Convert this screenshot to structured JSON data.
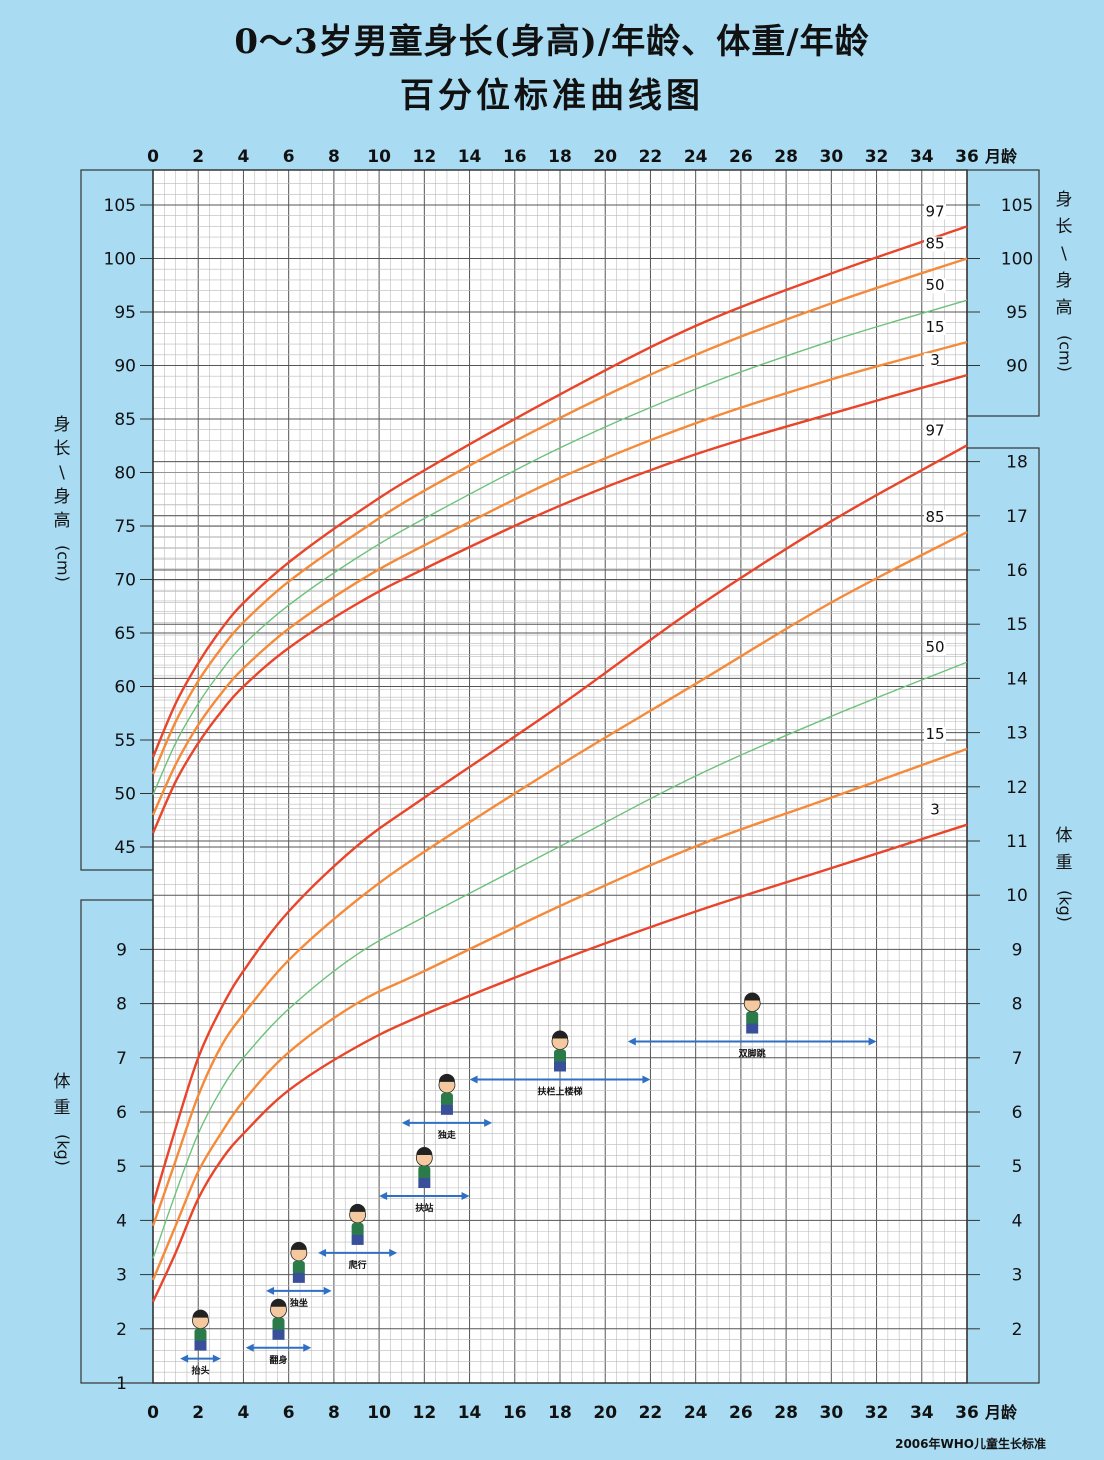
{
  "title_line1": "0～3岁男童身长(身高)/年龄、体重/年龄",
  "title_line2": "百分位标准曲线图",
  "source": "2006年WHO儿童生长标准",
  "chart_data": {
    "type": "line",
    "x_unit_label": "月龄",
    "xlim": [
      0,
      36
    ],
    "x_ticks": [
      0,
      2,
      4,
      6,
      8,
      10,
      12,
      14,
      16,
      18,
      20,
      22,
      24,
      26,
      28,
      30,
      32,
      34,
      36
    ],
    "length_axis": {
      "label_chars": [
        "身",
        "长",
        "/",
        "身",
        "高",
        "(cm)"
      ],
      "range": [
        45,
        105
      ],
      "ticks_left": [
        45,
        50,
        55,
        60,
        65,
        70,
        75,
        80,
        85,
        90,
        95,
        100,
        105
      ],
      "ticks_right": [
        90,
        95,
        100,
        105
      ]
    },
    "weight_axis": {
      "label_chars": [
        "体",
        "重",
        "(kg)"
      ],
      "range": [
        1,
        18
      ],
      "ticks_left": [
        1,
        2,
        3,
        4,
        5,
        6,
        7,
        8,
        9
      ],
      "ticks_right": [
        2,
        3,
        4,
        5,
        6,
        7,
        8,
        9,
        10,
        11,
        12,
        13,
        14,
        15,
        16,
        17,
        18
      ]
    },
    "x": [
      0,
      1,
      2,
      3,
      4,
      6,
      9,
      12,
      18,
      24,
      30,
      36
    ],
    "length_series": [
      {
        "name": "97",
        "color": "#e8452a",
        "values": [
          53.4,
          58.4,
          62.2,
          65.3,
          67.8,
          71.6,
          76.2,
          80.2,
          87.3,
          93.7,
          98.6,
          103.0
        ]
      },
      {
        "name": "85",
        "color": "#f58a3a",
        "values": [
          51.8,
          56.7,
          60.5,
          63.5,
          66.0,
          69.8,
          74.3,
          78.3,
          85.1,
          91.0,
          95.8,
          100.0
        ]
      },
      {
        "name": "50",
        "color": "#6cc27a",
        "values": [
          49.9,
          54.7,
          58.4,
          61.4,
          63.9,
          67.6,
          72.0,
          75.7,
          82.3,
          87.8,
          92.3,
          96.1
        ]
      },
      {
        "name": "15",
        "color": "#f58a3a",
        "values": [
          48.0,
          52.7,
          56.4,
          59.3,
          61.7,
          65.4,
          69.7,
          73.2,
          79.5,
          84.6,
          88.7,
          92.2
        ]
      },
      {
        "name": "3",
        "color": "#e8452a",
        "values": [
          46.3,
          51.1,
          54.7,
          57.6,
          60.0,
          63.6,
          67.7,
          71.0,
          76.9,
          81.7,
          85.5,
          89.1
        ]
      }
    ],
    "weight_series": [
      {
        "name": "97",
        "color": "#e8452a",
        "values": [
          4.3,
          5.7,
          7.0,
          7.9,
          8.6,
          9.7,
          10.9,
          11.8,
          13.5,
          15.3,
          16.9,
          18.3
        ]
      },
      {
        "name": "85",
        "color": "#f58a3a",
        "values": [
          3.9,
          5.1,
          6.3,
          7.2,
          7.8,
          8.8,
          9.9,
          10.8,
          12.4,
          13.9,
          15.4,
          16.7
        ]
      },
      {
        "name": "50",
        "color": "#6cc27a",
        "values": [
          3.3,
          4.5,
          5.6,
          6.4,
          7.0,
          7.9,
          8.9,
          9.6,
          10.9,
          12.2,
          13.3,
          14.3
        ]
      },
      {
        "name": "15",
        "color": "#f58a3a",
        "values": [
          2.9,
          3.9,
          4.9,
          5.6,
          6.2,
          7.1,
          8.0,
          8.6,
          9.8,
          10.9,
          11.8,
          12.7
        ]
      },
      {
        "name": "3",
        "color": "#e8452a",
        "values": [
          2.5,
          3.4,
          4.4,
          5.1,
          5.6,
          6.4,
          7.2,
          7.8,
          8.8,
          9.7,
          10.5,
          11.3
        ]
      }
    ],
    "milestones": [
      {
        "label": "抬头",
        "from": 1.2,
        "to": 3.0,
        "level": 1.45
      },
      {
        "label": "翻身",
        "from": 4.1,
        "to": 7.0,
        "level": 1.65
      },
      {
        "label": "独坐",
        "from": 5.0,
        "to": 7.9,
        "level": 2.7
      },
      {
        "label": "爬行",
        "from": 7.3,
        "to": 10.8,
        "level": 3.4
      },
      {
        "label": "扶站",
        "from": 10.0,
        "to": 14.0,
        "level": 4.45
      },
      {
        "label": "独走",
        "from": 11.0,
        "to": 15.0,
        "level": 5.8
      },
      {
        "label": "扶栏上楼梯",
        "from": 14.0,
        "to": 22.0,
        "level": 6.6
      },
      {
        "label": "双脚跳",
        "from": 21.0,
        "to": 32.0,
        "level": 7.3
      }
    ]
  }
}
